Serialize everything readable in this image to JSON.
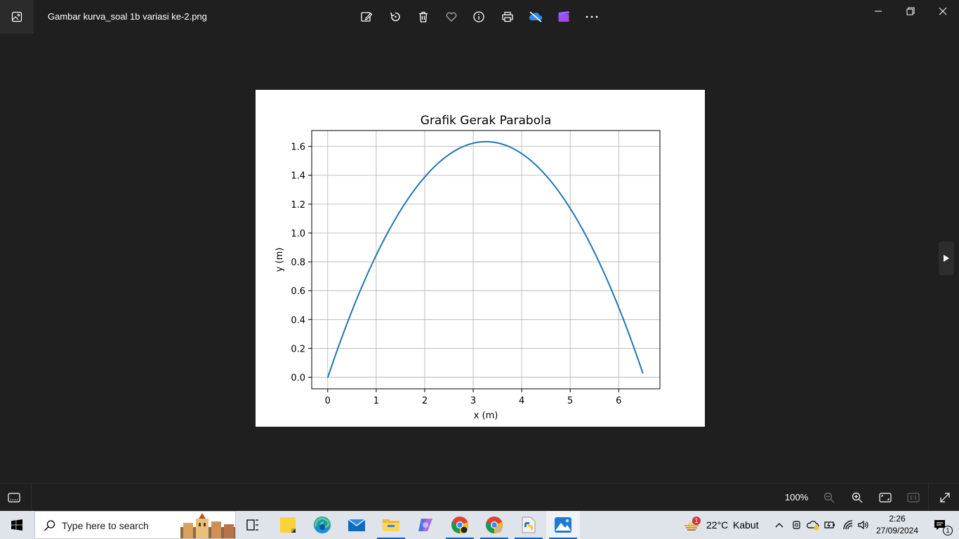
{
  "window": {
    "title": "Gambar kurva_soal 1b variasi ke-2.png",
    "toolbar": [
      {
        "name": "edit-image-button",
        "icon": "edit-icon"
      },
      {
        "name": "rotate-button",
        "icon": "rotate-icon"
      },
      {
        "name": "delete-button",
        "icon": "trash-icon"
      },
      {
        "name": "favorite-button",
        "icon": "heart-icon"
      },
      {
        "name": "info-button",
        "icon": "info-icon"
      },
      {
        "name": "print-button",
        "icon": "printer-icon"
      },
      {
        "name": "onedrive-button",
        "icon": "cloud-off-icon"
      },
      {
        "name": "clipchamp-button",
        "icon": "clapper-icon"
      },
      {
        "name": "more-button",
        "icon": "ellipsis-icon"
      }
    ]
  },
  "chart_data": {
    "type": "line",
    "title": "Grafik Gerak Parabola",
    "xlabel": "x (m)",
    "ylabel": "y (m)",
    "xlim": [
      -0.33,
      6.85
    ],
    "ylim": [
      -0.08,
      1.71
    ],
    "xticks": [
      "0",
      "1",
      "2",
      "3",
      "4",
      "5",
      "6"
    ],
    "xtick_values": [
      0,
      1,
      2,
      3,
      4,
      5,
      6
    ],
    "yticks": [
      "0.0",
      "0.2",
      "0.4",
      "0.6",
      "0.8",
      "1.0",
      "1.2",
      "1.4",
      "1.6"
    ],
    "ytick_values": [
      0,
      0.2,
      0.4,
      0.6,
      0.8,
      1.0,
      1.2,
      1.4,
      1.6
    ],
    "grid": true,
    "line_color": "#1f77b4",
    "series": [
      {
        "x": [
          0,
          0.5,
          1.0,
          1.5,
          2.0,
          2.5,
          3.0,
          3.27,
          3.5,
          4.0,
          4.5,
          5.0,
          5.5,
          6.0,
          6.5
        ],
        "y": [
          0.0,
          0.47,
          0.84,
          1.14,
          1.38,
          1.55,
          1.63,
          1.635,
          1.63,
          1.55,
          1.4,
          1.17,
          0.86,
          0.48,
          0.03
        ]
      }
    ]
  },
  "bottom": {
    "zoom": "100%"
  },
  "taskbar": {
    "search_placeholder": "Type here to search",
    "weather_temp": "22°C",
    "weather_desc": "Kabut",
    "weather_badge": "1",
    "time": "2:26",
    "date": "27/09/2024",
    "notification_count": "1"
  }
}
